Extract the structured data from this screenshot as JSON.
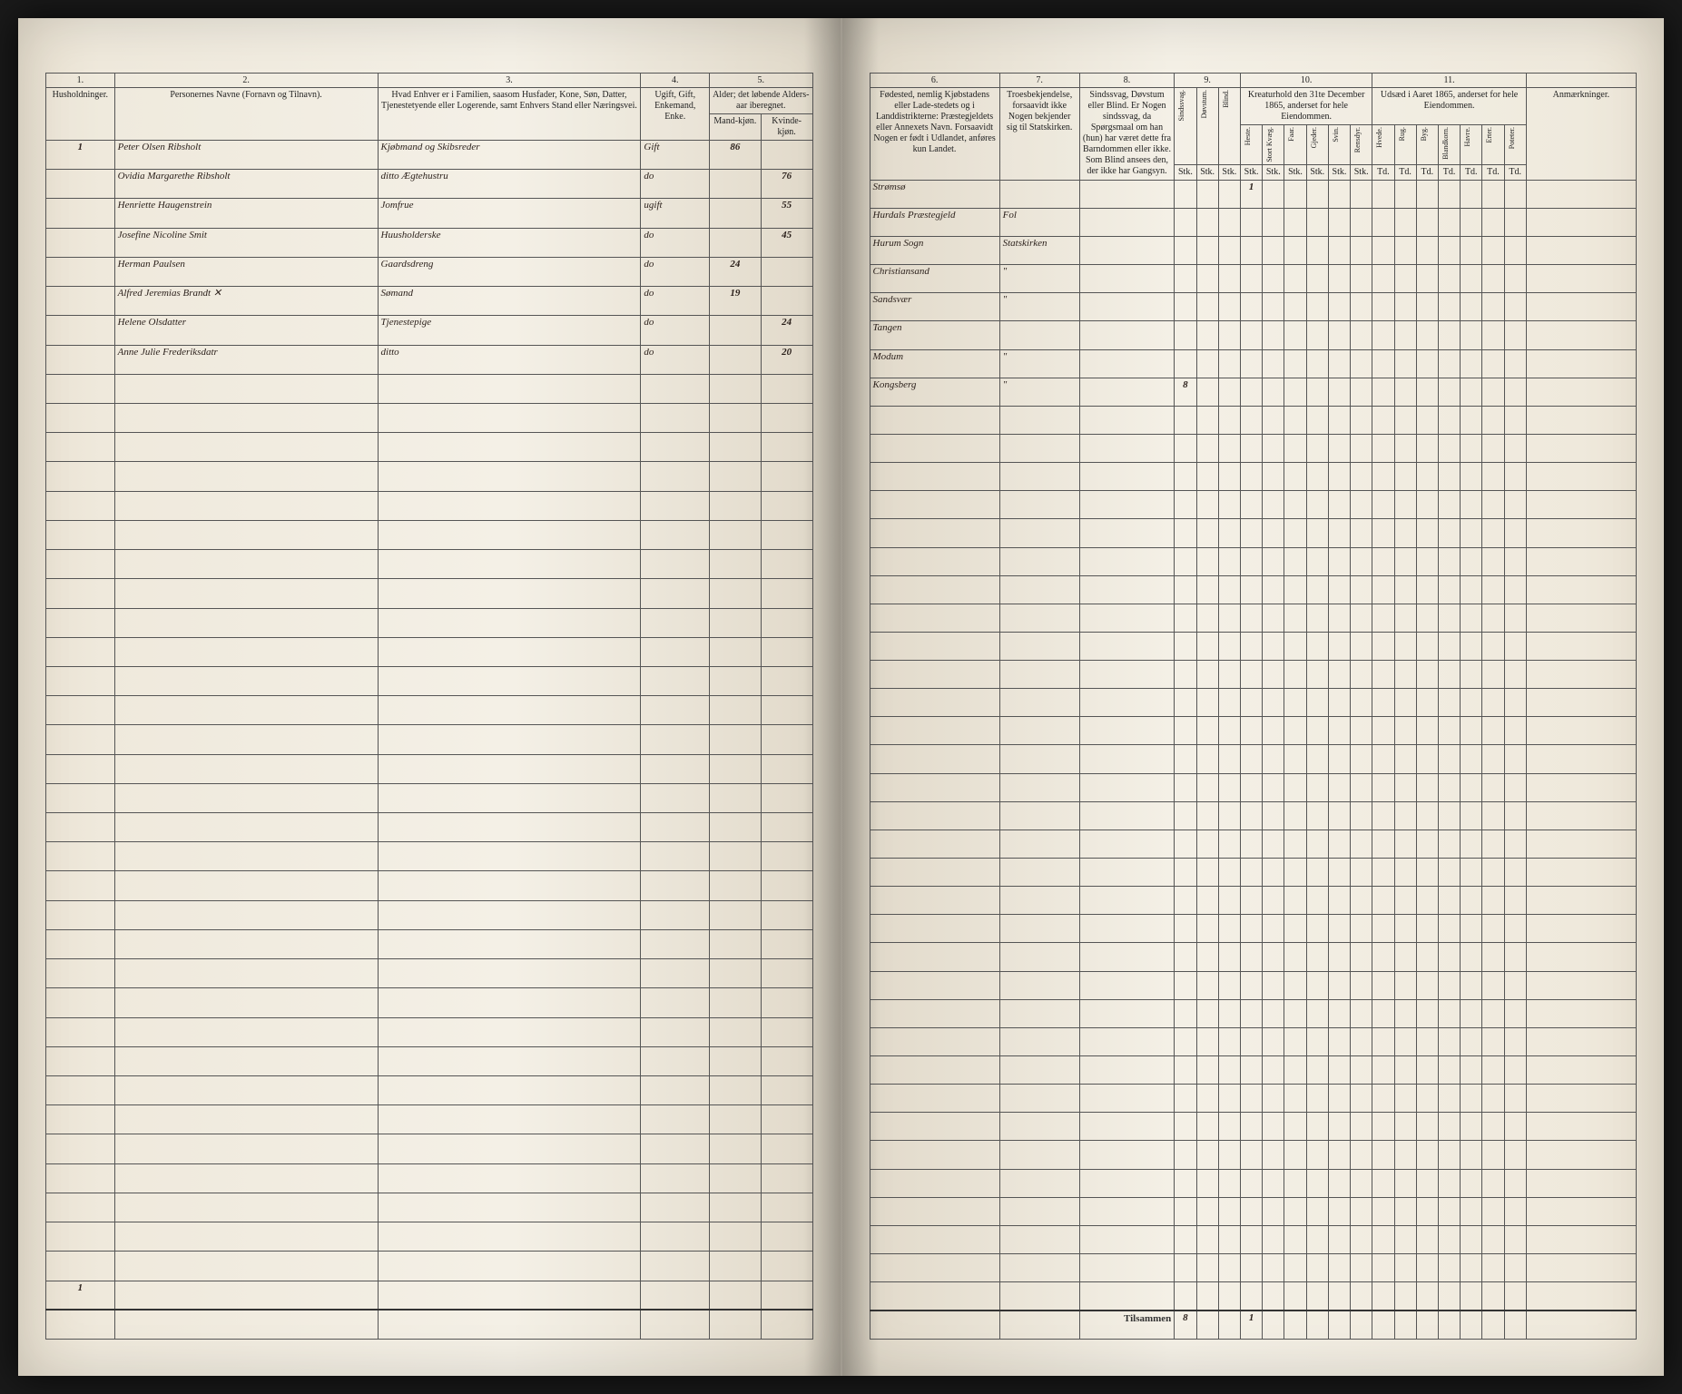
{
  "columns_left": {
    "c1": "1.",
    "c2": "2.",
    "c3": "3.",
    "c4": "4.",
    "c5": "5."
  },
  "columns_right": {
    "c6": "6.",
    "c7": "7.",
    "c8": "8.",
    "c9": "9.",
    "c10": "10.",
    "c11": "11."
  },
  "headers_left": {
    "h1": "Husholdninger.",
    "h2": "Personernes Navne (Fornavn og Tilnavn).",
    "h3": "Hvad Enhver er i Familien, saasom Husfader, Kone, Søn, Datter, Tjenestetyende eller Logerende, samt Enhvers Stand eller Næringsvei.",
    "h4": "Ugift, Gift, Enkemand, Enke.",
    "h5": "Alder; det løbende Alders-aar iberegnet.",
    "h5a": "Mand-kjøn.",
    "h5b": "Kvinde-kjøn."
  },
  "headers_right": {
    "h6": "Fødested, nemlig Kjøbstadens eller Lade-stedets og i Landdistrikterne: Præstegjeldets eller Annexets Navn. Forsaavidt Nogen er født i Udlandet, anføres kun Landet.",
    "h7": "Troesbekjendelse, forsaavidt ikke Nogen bekjender sig til Statskirken.",
    "h8": "Sindssvag, Døvstum eller Blind. Er Nogen sindssvag, da Spørgsmaal om han (hun) har været dette fra Barndommen eller ikke. Som Blind ansees den, der ikke har Gangsyn.",
    "h9a": "Sindssvag.",
    "h9b": "Døvstum.",
    "h9c": "Blind.",
    "h10": "Kreaturhold den 31te December 1865, anderset for hele Eiendommen.",
    "h10a": "Heste.",
    "h10b": "Stort Kvæg.",
    "h10c": "Faar.",
    "h10d": "Gjeder.",
    "h10e": "Svin.",
    "h10f": "Rensdyr.",
    "h11": "Udsæd i Aaret 1865, anderset for hele Eiendommen.",
    "h11a": "Hvede.",
    "h11b": "Rug.",
    "h11c": "Byg.",
    "h11d": "Blandkorn.",
    "h11e": "Havre.",
    "h11f": "Erter.",
    "h11g": "Poteter.",
    "h12": "Anmærkninger.",
    "unit": "Stk.",
    "unit2": "Td."
  },
  "rows": [
    {
      "hh": "1",
      "name": "Peter Olsen Ribsholt",
      "rel": "Kjøbmand og Skibsreder",
      "stat": "Gift",
      "ageM": "86",
      "ageK": "",
      "birth": "Strømsø",
      "faith": "",
      "notes": "",
      "c10_1": "1"
    },
    {
      "hh": "",
      "name": "Ovidia Margarethe Ribsholt",
      "rel": "ditto Ægtehustru",
      "stat": "do",
      "ageM": "",
      "ageK": "76",
      "birth": "Hurdals Præstegjeld",
      "faith": "Fol",
      "notes": ""
    },
    {
      "hh": "",
      "name": "Henriette Haugenstrein",
      "rel": "Jomfrue",
      "stat": "ugift",
      "ageM": "",
      "ageK": "55",
      "birth": "Hurum Sogn",
      "faith": "Statskirken",
      "notes": ""
    },
    {
      "hh": "",
      "name": "Josefine Nicoline Smit",
      "rel": "Huusholderske",
      "stat": "do",
      "ageM": "",
      "ageK": "45",
      "birth": "Christiansand",
      "faith": "\"",
      "notes": ""
    },
    {
      "hh": "",
      "name": "Herman Paulsen",
      "rel": "Gaardsdreng",
      "stat": "do",
      "ageM": "24",
      "ageK": "",
      "birth": "Sandsvær",
      "faith": "\"",
      "notes": ""
    },
    {
      "hh": "",
      "name": "Alfred Jeremias Brandt      ✕",
      "rel": "Sømand",
      "stat": "do",
      "ageM": "19",
      "ageK": "",
      "birth": "Tangen",
      "faith": "",
      "notes": ""
    },
    {
      "hh": "",
      "name": "Helene Olsdatter",
      "rel": "Tjenestepige",
      "stat": "do",
      "ageM": "",
      "ageK": "24",
      "birth": "Modum",
      "faith": "\"",
      "notes": ""
    },
    {
      "hh": "",
      "name": "Anne Julie Frederiksdatr",
      "rel": "ditto",
      "stat": "do",
      "ageM": "",
      "ageK": "20",
      "birth": "Kongsberg",
      "faith": "\"",
      "notes": "",
      "sum": "8"
    }
  ],
  "sum_label": "Tilsammen",
  "sum_val1": "8",
  "sum_val2": "1",
  "corner_mark": "1",
  "blank_rows": 32
}
